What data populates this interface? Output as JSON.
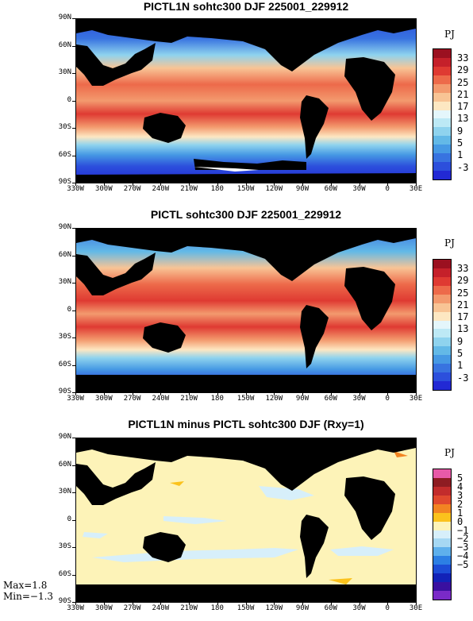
{
  "panels": [
    {
      "title": "PICTL1N sohtc300 DJF 225001_229912",
      "unit": "PJ",
      "colorbar_labels": [
        "33",
        "29",
        "25",
        "21",
        "17",
        "13",
        "9",
        "5",
        "1",
        "-3"
      ],
      "colorbar_colors": [
        "#9b1020",
        "#c5202a",
        "#df3a32",
        "#ed6a4a",
        "#f39a6e",
        "#f8c495",
        "#fde7c2",
        "#e4f6fb",
        "#bde9f5",
        "#8fd3ee",
        "#63b9e7",
        "#4699e4",
        "#3873e0",
        "#2c4fdc",
        "#2229d4"
      ]
    },
    {
      "title": "PICTL sohtc300 DJF 225001_229912",
      "unit": "PJ",
      "colorbar_labels": [
        "33",
        "29",
        "25",
        "21",
        "17",
        "13",
        "9",
        "5",
        "1",
        "-3"
      ],
      "colorbar_colors": [
        "#9b1020",
        "#c5202a",
        "#df3a32",
        "#ed6a4a",
        "#f39a6e",
        "#f8c495",
        "#fde7c2",
        "#e4f6fb",
        "#bde9f5",
        "#8fd3ee",
        "#63b9e7",
        "#4699e4",
        "#3873e0",
        "#2c4fdc",
        "#2229d4"
      ]
    },
    {
      "title": "PICTL1N minus PICTL sohtc300 DJF (Rxy=1)",
      "unit": "PJ",
      "colorbar_labels": [
        "5",
        "4",
        "3",
        "2",
        "1",
        "0",
        "−1",
        "−2",
        "−3",
        "−4",
        "−5"
      ],
      "colorbar_colors": [
        "#e85aa8",
        "#8e1c22",
        "#c22c2c",
        "#e0492e",
        "#f28422",
        "#fbc21c",
        "#fdf3b8",
        "#d7effa",
        "#a6d8f3",
        "#5eb0ec",
        "#2c7fe4",
        "#1c4cd6",
        "#1222b8",
        "#3a10a0",
        "#7a2ac8"
      ],
      "stats": {
        "max": "Max=1.8",
        "min": "Min=−1.3"
      }
    }
  ],
  "lat_labels": [
    "90N",
    "60N",
    "30N",
    "0",
    "30S",
    "60S",
    "90S"
  ],
  "lon_labels": [
    "330W",
    "300W",
    "270W",
    "240W",
    "210W",
    "180",
    "150W",
    "120W",
    "90W",
    "60W",
    "30W",
    "0",
    "30E"
  ]
}
